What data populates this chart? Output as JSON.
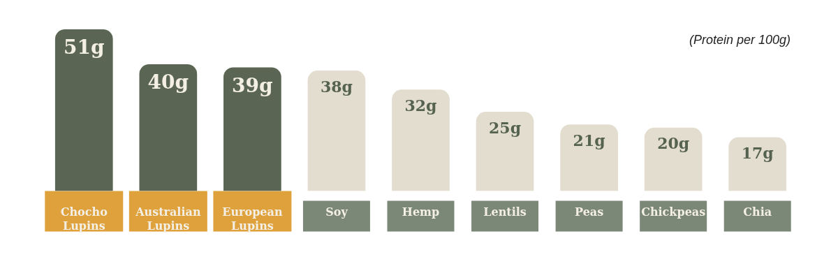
{
  "chart_data": {
    "type": "bar",
    "categories": [
      "Chocho Lupins",
      "Australian Lupins",
      "European Lupins",
      "Soy",
      "Hemp",
      "Lentils",
      "Peas",
      "Chickpeas",
      "Chia"
    ],
    "values": [
      51,
      40,
      39,
      38,
      32,
      25,
      21,
      20,
      17
    ],
    "colors": [
      "#5a6653",
      "#5a6653",
      "#5a6653",
      "#e3ddd0",
      "#e3ddd0",
      "#e3ddd0",
      "#e3ddd0",
      "#e3ddd0",
      "#e3ddd0"
    ],
    "value_labels": [
      "51g",
      "40g",
      "39g",
      "38g",
      "32g",
      "25g",
      "21g",
      "20g",
      "17g"
    ],
    "legend": false,
    "annotations": [
      "(Protein per 100g)"
    ]
  }
}
